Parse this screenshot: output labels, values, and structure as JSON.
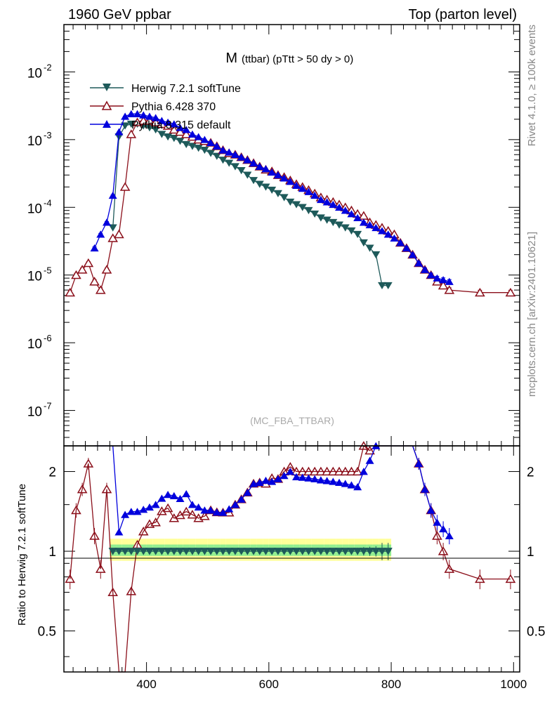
{
  "header": {
    "left": "1960 GeV ppbar",
    "right": "Top (parton level)"
  },
  "side_labels": {
    "top": "Rivet 4.1.0, ≥ 100k events",
    "bottom": "mcplots.cern.ch [arXiv:2401.10621]"
  },
  "plot_title": {
    "main": "M",
    "sub": "(ttbar) (pTtt > 50 dy > 0)"
  },
  "watermark": "(MC_FBA_TTBAR)",
  "ratio_ylabel": "Ratio to Herwig 7.2.1 softTune",
  "colors": {
    "herwig": "#1e5a5a",
    "pythia6": "#8b0f1a",
    "pythia8": "#0000dd",
    "band_inner": "#90ee90",
    "band_outer": "#ffff99"
  },
  "chart_data": {
    "type": "line",
    "title": "M (ttbar) (pTtt > 50 dy > 0)",
    "xlabel": "",
    "ylabel": "",
    "xlim": [
      265,
      1010
    ],
    "main_ylim": [
      3e-08,
      0.05
    ],
    "ratio_ylim": [
      0.35,
      2.5
    ],
    "x_ticks": [
      "400",
      "600",
      "800",
      "1000"
    ],
    "main_y_ticks": [
      {
        "value": 0.01,
        "base": "10",
        "exp": "-2"
      },
      {
        "value": 0.001,
        "base": "10",
        "exp": "-3"
      },
      {
        "value": 0.0001,
        "base": "10",
        "exp": "-4"
      },
      {
        "value": 1e-05,
        "base": "10",
        "exp": "-5"
      },
      {
        "value": 1e-06,
        "base": "10",
        "exp": "-6"
      },
      {
        "value": 1e-07,
        "base": "10",
        "exp": "-7"
      }
    ],
    "ratio_y_ticks": [
      "0.5",
      "1",
      "2"
    ],
    "series": [
      {
        "name": "Herwig 7.2.1 softTune",
        "marker": "triangle-down-filled",
        "color": "#1e5a5a",
        "x": [
          345,
          355,
          365,
          375,
          385,
          395,
          405,
          415,
          425,
          435,
          445,
          455,
          465,
          475,
          485,
          495,
          505,
          515,
          525,
          535,
          545,
          555,
          565,
          575,
          585,
          595,
          605,
          615,
          625,
          635,
          645,
          655,
          665,
          675,
          685,
          695,
          705,
          715,
          725,
          735,
          745,
          755,
          765,
          775,
          785,
          795
        ],
        "y": [
          5e-05,
          0.0011,
          0.0016,
          0.0017,
          0.0017,
          0.0016,
          0.0015,
          0.0014,
          0.0012,
          0.0011,
          0.00105,
          0.00095,
          0.00085,
          0.0008,
          0.00075,
          0.0007,
          0.00063,
          0.00057,
          0.0005,
          0.00045,
          0.0004,
          0.00035,
          0.0003,
          0.00025,
          0.00022,
          0.0002,
          0.00018,
          0.00016,
          0.00014,
          0.00012,
          0.00011,
          0.0001,
          9e-05,
          8e-05,
          7e-05,
          6.5e-05,
          6e-05,
          5.5e-05,
          5e-05,
          4.5e-05,
          4e-05,
          3e-05,
          2.5e-05,
          2e-05,
          7e-06,
          7e-06
        ]
      },
      {
        "name": "Pythia 6.428 370",
        "marker": "triangle-up-open",
        "color": "#8b0f1a",
        "x": [
          275,
          285,
          295,
          305,
          315,
          325,
          335,
          345,
          355,
          365,
          375,
          385,
          395,
          405,
          415,
          425,
          435,
          445,
          455,
          465,
          475,
          485,
          495,
          505,
          515,
          525,
          535,
          545,
          555,
          565,
          575,
          585,
          595,
          605,
          615,
          625,
          635,
          645,
          655,
          665,
          675,
          685,
          695,
          705,
          715,
          725,
          735,
          745,
          755,
          765,
          775,
          785,
          795,
          805,
          815,
          825,
          835,
          845,
          855,
          865,
          875,
          885,
          895,
          945,
          995
        ],
        "y": [
          5.5e-06,
          1e-05,
          1.2e-05,
          1.5e-05,
          8e-06,
          6e-06,
          1.2e-05,
          3.5e-05,
          4e-05,
          0.0002,
          0.0012,
          0.0018,
          0.0019,
          0.0019,
          0.0018,
          0.0017,
          0.0016,
          0.0014,
          0.0013,
          0.0012,
          0.0011,
          0.001,
          0.00095,
          0.0009,
          0.0008,
          0.0007,
          0.00063,
          0.0006,
          0.00055,
          0.0005,
          0.00045,
          0.0004,
          0.00036,
          0.00034,
          0.0003,
          0.00028,
          0.00025,
          0.00022,
          0.0002,
          0.00018,
          0.00016,
          0.00014,
          0.00013,
          0.00012,
          0.00011,
          0.0001,
          9e-05,
          8e-05,
          7.5e-05,
          6e-05,
          5.5e-05,
          5e-05,
          4.5e-05,
          4e-05,
          3e-05,
          2.5e-05,
          2e-05,
          1.5e-05,
          1.2e-05,
          1e-05,
          8e-06,
          7e-06,
          6e-06,
          5.5e-06,
          5.5e-06
        ]
      },
      {
        "name": "Pythia 8.315 default",
        "marker": "triangle-up-filled",
        "color": "#0000dd",
        "x": [
          315,
          325,
          335,
          345,
          355,
          365,
          375,
          385,
          395,
          405,
          415,
          425,
          435,
          445,
          455,
          465,
          475,
          485,
          495,
          505,
          515,
          525,
          535,
          545,
          555,
          565,
          575,
          585,
          595,
          605,
          615,
          625,
          635,
          645,
          655,
          665,
          675,
          685,
          695,
          705,
          715,
          725,
          735,
          745,
          755,
          765,
          775,
          785,
          795,
          805,
          815,
          825,
          835,
          845,
          855,
          865,
          875,
          885,
          895
        ],
        "y": [
          2.5e-05,
          4e-05,
          6e-05,
          0.00015,
          0.0013,
          0.0022,
          0.0024,
          0.0024,
          0.0023,
          0.0022,
          0.0021,
          0.0019,
          0.0018,
          0.0017,
          0.0015,
          0.0014,
          0.0012,
          0.0011,
          0.001,
          0.0009,
          0.0008,
          0.0007,
          0.00065,
          0.0006,
          0.00055,
          0.0005,
          0.00045,
          0.0004,
          0.00037,
          0.00033,
          0.0003,
          0.00027,
          0.00024,
          0.00021,
          0.00019,
          0.00017,
          0.00015,
          0.00013,
          0.00012,
          0.00011,
          0.0001,
          9e-05,
          8e-05,
          7e-05,
          6e-05,
          5.5e-05,
          5e-05,
          4.5e-05,
          4e-05,
          3.5e-05,
          3e-05,
          2.5e-05,
          2e-05,
          1.5e-05,
          1.2e-05,
          1e-05,
          9e-06,
          8.5e-06,
          8e-06
        ]
      }
    ]
  }
}
